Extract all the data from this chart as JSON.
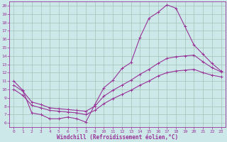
{
  "xlabel": "Windchill (Refroidissement éolien,°C)",
  "background_color": "#cce8e8",
  "grid_color": "#aaccaa",
  "line_color": "#993399",
  "xlim": [
    -0.5,
    23.5
  ],
  "ylim": [
    5.5,
    20.5
  ],
  "xticks": [
    0,
    1,
    2,
    3,
    4,
    5,
    6,
    7,
    8,
    9,
    10,
    11,
    12,
    13,
    14,
    15,
    16,
    17,
    18,
    19,
    20,
    21,
    22,
    23
  ],
  "yticks": [
    6,
    7,
    8,
    9,
    10,
    11,
    12,
    13,
    14,
    15,
    16,
    17,
    18,
    19,
    20
  ],
  "line1_x": [
    0,
    1,
    2,
    3,
    4,
    5,
    6,
    7,
    8,
    9,
    10,
    11,
    12,
    13,
    14,
    15,
    16,
    17,
    18,
    19,
    20,
    21,
    22,
    23
  ],
  "line1_y": [
    11.0,
    9.9,
    7.2,
    7.0,
    6.5,
    6.5,
    6.7,
    6.5,
    6.1,
    8.2,
    10.2,
    11.1,
    12.5,
    13.2,
    16.2,
    18.5,
    19.2,
    20.1,
    19.7,
    17.5,
    15.3,
    14.2,
    13.1,
    12.2
  ],
  "line2_x": [
    0,
    1,
    2,
    3,
    4,
    5,
    6,
    7,
    8,
    9,
    10,
    11,
    12,
    13,
    14,
    15,
    16,
    17,
    18,
    19,
    20,
    21,
    22,
    23
  ],
  "line2_y": [
    10.5,
    9.8,
    8.5,
    8.2,
    7.8,
    7.7,
    7.6,
    7.5,
    7.4,
    8.0,
    9.2,
    9.9,
    10.5,
    11.1,
    11.8,
    12.4,
    13.1,
    13.7,
    13.9,
    14.0,
    14.1,
    13.3,
    12.6,
    12.1
  ],
  "line3_x": [
    0,
    1,
    2,
    3,
    4,
    5,
    6,
    7,
    8,
    9,
    10,
    11,
    12,
    13,
    14,
    15,
    16,
    17,
    18,
    19,
    20,
    21,
    22,
    23
  ],
  "line3_y": [
    10.0,
    9.3,
    8.1,
    7.8,
    7.5,
    7.4,
    7.3,
    7.2,
    7.0,
    7.5,
    8.3,
    8.9,
    9.4,
    9.9,
    10.5,
    11.0,
    11.6,
    12.0,
    12.2,
    12.3,
    12.4,
    12.0,
    11.7,
    11.5
  ],
  "marker": "+",
  "markersize": 3,
  "linewidth": 0.8,
  "tick_fontsize": 4.5,
  "xlabel_fontsize": 5.5
}
